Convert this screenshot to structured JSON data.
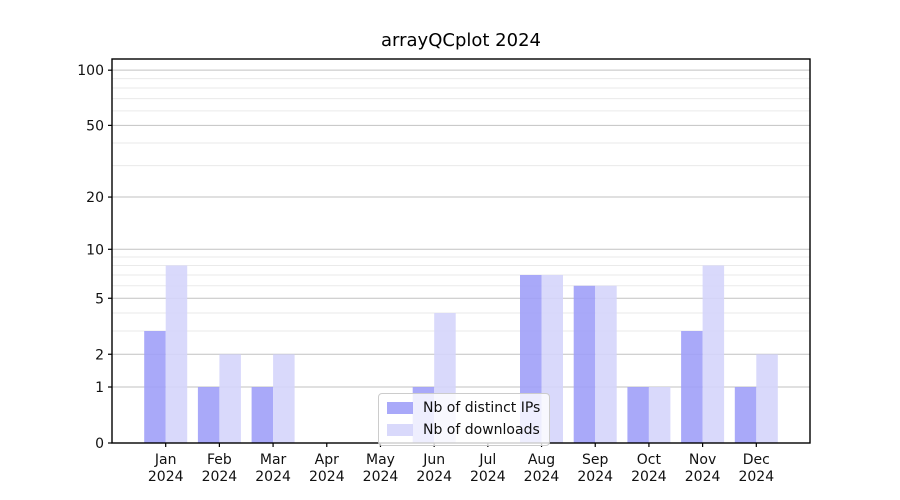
{
  "chart_data": {
    "type": "bar",
    "title": "arrayQCplot 2024",
    "categories": [
      "Jan",
      "Feb",
      "Mar",
      "Apr",
      "May",
      "Jun",
      "Jul",
      "Aug",
      "Sep",
      "Oct",
      "Nov",
      "Dec"
    ],
    "x_year_label": "2024",
    "series": [
      {
        "name": "Nb of distinct IPs",
        "color": "#9d9df8",
        "values": [
          3,
          1,
          1,
          0,
          0,
          1,
          0,
          7,
          6,
          1,
          3,
          1
        ]
      },
      {
        "name": "Nb of downloads",
        "color": "#d4d4fa",
        "values": [
          8,
          2,
          2,
          0,
          0,
          4,
          0,
          7,
          6,
          1,
          8,
          2
        ]
      }
    ],
    "yscale": "log1p",
    "ylim": [
      0,
      115
    ],
    "yticks": [
      0,
      1,
      2,
      5,
      10,
      20,
      50,
      100
    ],
    "minor_gridlines": [
      3,
      4,
      6,
      7,
      8,
      9,
      30,
      40,
      60,
      70,
      80,
      90
    ],
    "grid": true,
    "legend_position": "lower-center",
    "colors": {
      "major_grid": "#c2c2c2",
      "minor_grid": "#eaeaea",
      "spine": "#000000"
    }
  }
}
